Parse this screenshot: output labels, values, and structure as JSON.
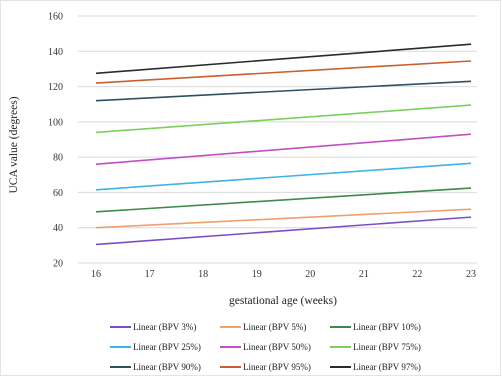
{
  "chart_data": {
    "type": "line",
    "title": "",
    "xlabel": "gestational age (weeks)",
    "ylabel": "UCA value (degrees)",
    "xlim": [
      16,
      23
    ],
    "ylim": [
      20,
      160
    ],
    "x_ticks": [
      "16",
      "17",
      "18",
      "19",
      "20",
      "21",
      "22",
      "23"
    ],
    "y_ticks": [
      "20",
      "40",
      "60",
      "80",
      "100",
      "120",
      "140",
      "160"
    ],
    "grid": "horizontal",
    "legend_position": "bottom",
    "x": [
      16,
      23
    ],
    "series": [
      {
        "name": "Linear (BPV 3%)",
        "color": "#7a4fc4",
        "values": [
          30.5,
          46
        ]
      },
      {
        "name": "Linear (BPV 5%)",
        "color": "#f0a070",
        "values": [
          40,
          50.5
        ]
      },
      {
        "name": "Linear (BPV 10%)",
        "color": "#3f8a4a",
        "values": [
          49,
          62.5
        ]
      },
      {
        "name": "Linear (BPV 25%)",
        "color": "#3eb4e6",
        "values": [
          61.5,
          76.5
        ]
      },
      {
        "name": "Linear (BPV 50%)",
        "color": "#c44fc4",
        "values": [
          76,
          93
        ]
      },
      {
        "name": "Linear (BPV 75%)",
        "color": "#7ccf5c",
        "values": [
          94,
          109.5
        ]
      },
      {
        "name": "Linear (BPV 90%)",
        "color": "#2f4f62",
        "values": [
          112,
          123
        ]
      },
      {
        "name": "Linear (BPV 95%)",
        "color": "#c8602e",
        "values": [
          122,
          134.5
        ]
      },
      {
        "name": "Linear (BPV 97%)",
        "color": "#2b2b2b",
        "values": [
          127.5,
          144
        ]
      }
    ]
  }
}
